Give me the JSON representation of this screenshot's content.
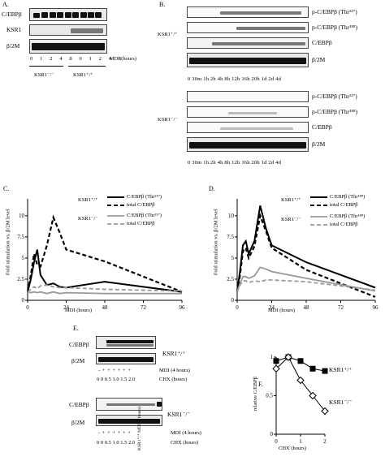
{
  "panelA": {
    "label": "A.",
    "rows": [
      "C/EBPβ",
      "KSR1",
      "β/2M"
    ],
    "lanes": [
      "0",
      "1",
      "2",
      "4",
      "8",
      "0",
      "1",
      "2",
      "4",
      "8"
    ],
    "unit": "MDI (hours)",
    "groups": [
      "KSR1⁻/⁻",
      "KSR1⁺/⁺"
    ]
  },
  "panelB": {
    "label": "B.",
    "rows": [
      "p-C/EBPβ (Thr²¹⁷)",
      "p-C/EBPβ (Thr¹⁸⁸)",
      "C/EBPβ",
      "β/2M"
    ],
    "lanes": "0 30m 1h 2h 4h 8h 12h 16h 20h 1d 2d 4d",
    "groups": [
      "KSR1⁺/⁺",
      "KSR1⁻/⁻"
    ]
  },
  "panelC": {
    "label": "C.",
    "ylabel": "Fold stimulation vs. β/2M level",
    "xlabel": "MDI (hours)",
    "legend": {
      "wt": "KSR1⁺/⁺",
      "ko": "KSR1⁻/⁻",
      "p": "C/EBPβ (Thr²¹⁷)",
      "total": "total C/EBPβ"
    }
  },
  "panelD": {
    "label": "D.",
    "ylabel": "Fold stimulation vs. β/2M level",
    "xlabel": "MDI (hours)",
    "legend": {
      "wt": "KSR1⁺/⁺",
      "ko": "KSR1⁻/⁻",
      "p": "C/EBPβ (Thr¹⁸⁸)",
      "total": "total C/EBPβ"
    }
  },
  "panelE": {
    "label": "E.",
    "rows": [
      "C/EBPβ",
      "β/2M"
    ],
    "wt": "KSR1⁺/⁺",
    "ko": "KSR1⁻/⁻",
    "mdi_row": "-  +  +  +  +  +  +",
    "mdi_label": "MDI (4 hours)",
    "chx_row": "0  0  0.5 1.0 1.5 2.0",
    "chx_label": "CHX (hours)",
    "extra_lane": "KSR1⁺/⁺ MDI (4 hours)"
  },
  "panelF": {
    "label": "F.",
    "ylabel": "relative C/EBPβ",
    "xlabel": "CHX (hours)",
    "wt": "KSR1⁺/⁺",
    "ko": "KSR1⁻/⁻"
  },
  "chart_data": [
    {
      "type": "line",
      "panel": "C",
      "xlabel": "MDI (hours)",
      "ylabel": "Fold stimulation vs. β/2M level",
      "xlim": [
        0,
        96
      ],
      "ylim": [
        0,
        12
      ],
      "xticks": [
        0,
        24,
        48,
        72,
        96
      ],
      "yticks": [
        0,
        2.5,
        5,
        7.5,
        10
      ],
      "series": [
        {
          "name": "KSR1⁺/⁺ C/EBPβ (Thr²¹⁷)",
          "x": [
            0,
            2,
            4,
            6,
            8,
            12,
            16,
            20,
            24,
            48,
            96
          ],
          "y": [
            1,
            2.5,
            4.5,
            6,
            3,
            1.8,
            2,
            1.6,
            1.5,
            2.2,
            1
          ]
        },
        {
          "name": "KSR1⁺/⁺ total C/EBPβ",
          "x": [
            0,
            2,
            4,
            6,
            8,
            12,
            16,
            20,
            24,
            48,
            96
          ],
          "y": [
            1,
            3,
            5.5,
            4.2,
            4,
            6.5,
            9.8,
            8,
            6,
            4.6,
            1
          ]
        },
        {
          "name": "KSR1⁻/⁻ C/EBPβ (Thr²¹⁷)",
          "x": [
            0,
            2,
            4,
            6,
            8,
            12,
            16,
            20,
            24,
            48,
            96
          ],
          "y": [
            1,
            0.9,
            1,
            0.9,
            1,
            0.8,
            1,
            0.8,
            0.9,
            0.8,
            0.8
          ]
        },
        {
          "name": "KSR1⁻/⁻ total C/EBPβ",
          "x": [
            0,
            2,
            4,
            6,
            8,
            12,
            16,
            20,
            24,
            48,
            96
          ],
          "y": [
            1,
            1.3,
            1.6,
            1.4,
            1.7,
            1.8,
            1.6,
            1.5,
            1.5,
            1.3,
            1.1
          ]
        }
      ]
    },
    {
      "type": "line",
      "panel": "D",
      "xlabel": "MDI (hours)",
      "ylabel": "Fold stimulation vs. β/2M level",
      "xlim": [
        0,
        96
      ],
      "ylim": [
        0,
        12
      ],
      "xticks": [
        0,
        24,
        48,
        72,
        96
      ],
      "yticks": [
        0,
        2.5,
        5,
        7.5,
        10
      ],
      "series": [
        {
          "name": "KSR1⁺/⁺ C/EBPβ (Thr¹⁸⁸)",
          "x": [
            0,
            2,
            4,
            6,
            8,
            12,
            16,
            20,
            24,
            48,
            96
          ],
          "y": [
            1,
            3.5,
            6.5,
            7,
            5.5,
            7,
            11.2,
            8.5,
            6.5,
            4.5,
            1.5
          ]
        },
        {
          "name": "KSR1⁺/⁺ total C/EBPβ",
          "x": [
            0,
            2,
            4,
            6,
            8,
            12,
            16,
            20,
            24,
            48,
            96
          ],
          "y": [
            1,
            3,
            5.8,
            6.2,
            5,
            6.4,
            10,
            8.2,
            6.2,
            3.6,
            0.4
          ]
        },
        {
          "name": "KSR1⁻/⁻ C/EBPβ (Thr¹⁸⁸)",
          "x": [
            0,
            2,
            4,
            6,
            8,
            12,
            16,
            20,
            24,
            48,
            96
          ],
          "y": [
            1,
            2,
            2.8,
            2.8,
            2.6,
            2.9,
            3.9,
            3.7,
            3.4,
            2.6,
            1.1
          ]
        },
        {
          "name": "KSR1⁻/⁻ total C/EBPβ",
          "x": [
            0,
            2,
            4,
            6,
            8,
            12,
            16,
            20,
            24,
            48,
            96
          ],
          "y": [
            1,
            1.8,
            2.3,
            2.3,
            2.1,
            2.3,
            2.2,
            2.4,
            2.4,
            2.2,
            1.2
          ]
        }
      ]
    },
    {
      "type": "line",
      "panel": "F",
      "xlabel": "CHX (hours)",
      "ylabel": "relative C/EBPβ",
      "xlim": [
        0,
        2
      ],
      "ylim": [
        0,
        1
      ],
      "xticks": [
        0,
        1,
        2
      ],
      "yticks": [
        0,
        0.5,
        1
      ],
      "series": [
        {
          "name": "KSR1⁺/⁺",
          "x": [
            0,
            0.5,
            1,
            1.5,
            2
          ],
          "y": [
            0.95,
            1.0,
            0.95,
            0.85,
            0.82
          ]
        },
        {
          "name": "KSR1⁻/⁻",
          "x": [
            0,
            0.5,
            1,
            1.5,
            2
          ],
          "y": [
            0.85,
            1.0,
            0.7,
            0.5,
            0.3
          ]
        }
      ]
    }
  ]
}
